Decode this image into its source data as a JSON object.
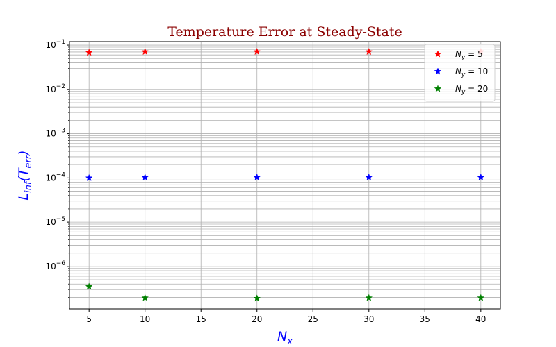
{
  "chart_data": {
    "type": "scatter",
    "title": "Temperature Error at Steady-State",
    "xlabel": "N",
    "xlabel_sub": "x",
    "ylabel": "L",
    "ylabel_sub": "inf",
    "ylabel_paren": "(T",
    "ylabel_paren_sub": "err",
    "ylabel_close": ")",
    "x": [
      5,
      10,
      20,
      30,
      40
    ],
    "xlim": [
      3.25,
      41.75
    ],
    "ylim": [
      1.1e-07,
      0.12
    ],
    "yscale": "log",
    "xticks": [
      5,
      10,
      15,
      20,
      25,
      30,
      35,
      40
    ],
    "xtick_labels": [
      "5",
      "10",
      "15",
      "20",
      "25",
      "30",
      "35",
      "40"
    ],
    "yticks": [
      {
        "value": 1e-06,
        "base": "10",
        "exp": "−6"
      },
      {
        "value": 1e-05,
        "base": "10",
        "exp": "−5"
      },
      {
        "value": 0.0001,
        "base": "10",
        "exp": "−4"
      },
      {
        "value": 0.001,
        "base": "10",
        "exp": "−3"
      },
      {
        "value": 0.01,
        "base": "10",
        "exp": "−2"
      },
      {
        "value": 0.1,
        "base": "10",
        "exp": "−1"
      }
    ],
    "grid": true,
    "grid_minor_y": true,
    "legend_position": "upper-right",
    "marker": "star",
    "series": [
      {
        "name": "N",
        "name_sub": "y",
        "name_rest": " = 5",
        "color": "#ff0000",
        "values": [
          0.068,
          0.071,
          0.071,
          0.071,
          0.071
        ]
      },
      {
        "name": "N",
        "name_sub": "y",
        "name_rest": " = 10",
        "color": "#0000ff",
        "values": [
          0.0001,
          0.000103,
          0.000103,
          0.000103,
          0.000103
        ]
      },
      {
        "name": "N",
        "name_sub": "y",
        "name_rest": " = 20",
        "color": "#008000",
        "values": [
          3.5e-07,
          1.95e-07,
          1.9e-07,
          1.95e-07,
          1.95e-07
        ]
      }
    ]
  }
}
